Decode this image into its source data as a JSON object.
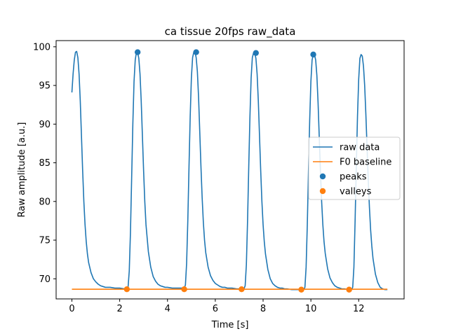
{
  "chart_data": {
    "type": "line",
    "title": "ca tissue 20fps raw_data",
    "xlabel": "Time [s]",
    "ylabel": "Raw amplitude [a.u.]",
    "xlim": [
      -0.66,
      13.9
    ],
    "ylim": [
      67.4,
      100.8
    ],
    "xticks": [
      0,
      2,
      4,
      6,
      8,
      10,
      12
    ],
    "yticks": [
      70,
      75,
      80,
      85,
      90,
      95,
      100
    ],
    "grid": false,
    "legend_position": "center-right",
    "series": [
      {
        "name": "raw data",
        "kind": "line",
        "color": "#1f77b4",
        "x": [
          0.0,
          0.05,
          0.1,
          0.15,
          0.2,
          0.25,
          0.3,
          0.35,
          0.4,
          0.45,
          0.5,
          0.55,
          0.6,
          0.65,
          0.7,
          0.8,
          0.9,
          1.0,
          1.1,
          1.2,
          1.3,
          1.4,
          1.5,
          1.6,
          1.8,
          2.0,
          2.2,
          2.3,
          2.35,
          2.4,
          2.45,
          2.5,
          2.55,
          2.6,
          2.65,
          2.7,
          2.75,
          2.8,
          2.85,
          2.9,
          2.95,
          3.0,
          3.05,
          3.1,
          3.2,
          3.3,
          3.4,
          3.5,
          3.6,
          3.7,
          3.8,
          3.9,
          4.0,
          4.2,
          4.4,
          4.6,
          4.7,
          4.75,
          4.8,
          4.85,
          4.9,
          4.95,
          5.0,
          5.05,
          5.1,
          5.15,
          5.2,
          5.25,
          5.3,
          5.35,
          5.4,
          5.45,
          5.5,
          5.55,
          5.6,
          5.7,
          5.8,
          5.9,
          6.0,
          6.1,
          6.2,
          6.3,
          6.4,
          6.5,
          6.7,
          6.9,
          7.1,
          7.2,
          7.25,
          7.3,
          7.35,
          7.4,
          7.45,
          7.5,
          7.55,
          7.6,
          7.65,
          7.7,
          7.75,
          7.8,
          7.85,
          7.9,
          7.95,
          8.0,
          8.05,
          8.1,
          8.2,
          8.3,
          8.4,
          8.5,
          8.6,
          8.7,
          8.8,
          8.9,
          9.0,
          9.2,
          9.4,
          9.6,
          9.7,
          9.75,
          9.8,
          9.85,
          9.9,
          9.95,
          10.0,
          10.05,
          10.1,
          10.15,
          10.2,
          10.25,
          10.3,
          10.35,
          10.4,
          10.45,
          10.5,
          10.55,
          10.6,
          10.7,
          10.8,
          10.9,
          11.0,
          11.1,
          11.2,
          11.3,
          11.4,
          11.6,
          11.7,
          11.75,
          11.8,
          11.85,
          11.9,
          11.95,
          12.0,
          12.05,
          12.1,
          12.15,
          12.2,
          12.25,
          12.3,
          12.35,
          12.4,
          12.45,
          12.5,
          12.55,
          12.6,
          12.7,
          12.8,
          12.9,
          13.0,
          13.1,
          13.2
        ],
        "y": [
          94.1,
          96.5,
          98.3,
          99.3,
          99.4,
          98.6,
          96.5,
          93.0,
          88.5,
          84.0,
          80.0,
          77.0,
          74.8,
          73.2,
          72.1,
          70.8,
          70.0,
          69.6,
          69.3,
          69.1,
          69.0,
          68.9,
          68.9,
          68.9,
          68.8,
          68.8,
          68.7,
          68.7,
          68.9,
          71.0,
          76.0,
          83.0,
          90.0,
          95.5,
          98.3,
          99.3,
          99.3,
          98.5,
          96.5,
          93.0,
          88.5,
          84.0,
          80.0,
          77.0,
          73.5,
          71.5,
          70.3,
          69.7,
          69.3,
          69.1,
          69.0,
          68.9,
          68.9,
          68.8,
          68.8,
          68.8,
          68.8,
          69.2,
          72.0,
          77.5,
          84.5,
          91.0,
          96.0,
          98.6,
          99.3,
          99.3,
          98.6,
          96.8,
          93.5,
          89.0,
          84.5,
          80.5,
          77.3,
          75.0,
          73.4,
          71.5,
          70.4,
          69.8,
          69.4,
          69.2,
          69.0,
          68.9,
          68.9,
          68.8,
          68.8,
          68.7,
          68.7,
          68.7,
          69.1,
          71.8,
          77.5,
          84.5,
          91.0,
          96.0,
          98.6,
          99.2,
          99.2,
          98.5,
          96.5,
          93.0,
          88.5,
          84.0,
          80.0,
          77.0,
          74.8,
          73.2,
          71.2,
          70.0,
          69.4,
          69.1,
          68.9,
          68.8,
          68.8,
          68.7,
          68.7,
          68.6,
          68.6,
          68.6,
          68.6,
          68.9,
          71.5,
          77.0,
          84.0,
          90.5,
          95.5,
          98.3,
          99.0,
          99.0,
          98.3,
          96.3,
          92.8,
          88.3,
          83.8,
          80.0,
          77.0,
          74.8,
          73.3,
          71.3,
          70.1,
          69.5,
          69.1,
          68.9,
          68.8,
          68.7,
          68.7,
          68.6,
          68.6,
          68.9,
          71.5,
          77.5,
          84.5,
          91.0,
          95.8,
          98.5,
          99.0,
          98.8,
          97.5,
          95.0,
          91.3,
          87.0,
          82.8,
          79.2,
          76.3,
          74.2,
          72.6,
          70.6,
          69.5,
          68.9,
          68.7,
          68.6,
          68.6
        ]
      },
      {
        "name": "F0 baseline",
        "kind": "line",
        "color": "#ff7f0e",
        "x": [
          0.0,
          13.2
        ],
        "y": [
          68.65,
          68.65
        ]
      },
      {
        "name": "peaks",
        "kind": "scatter",
        "color": "#1f77b4",
        "x": [
          2.75,
          5.2,
          7.7,
          10.1
        ],
        "y": [
          99.3,
          99.3,
          99.2,
          99.0
        ]
      },
      {
        "name": "valleys",
        "kind": "scatter",
        "color": "#ff7f0e",
        "x": [
          2.3,
          4.7,
          7.1,
          9.6,
          11.6
        ],
        "y": [
          68.65,
          68.65,
          68.65,
          68.6,
          68.6
        ]
      }
    ]
  }
}
